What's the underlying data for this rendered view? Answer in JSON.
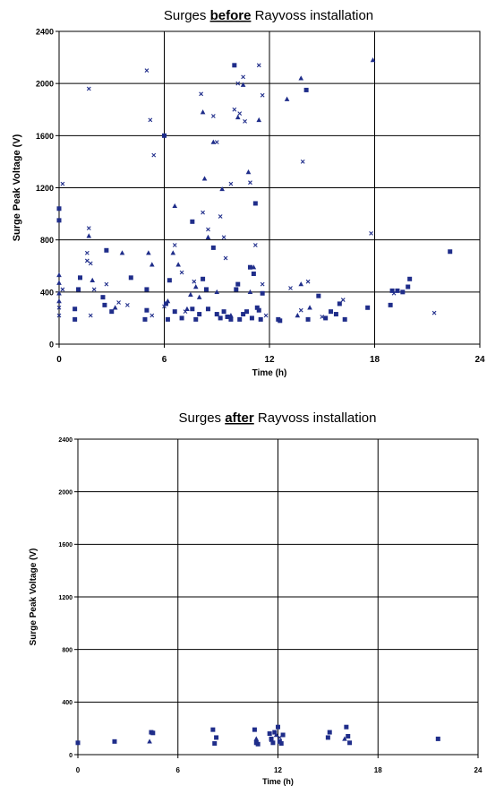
{
  "chart_data": [
    {
      "type": "scatter",
      "title": {
        "pre": "Surges ",
        "emph": "before",
        "post": " Rayvoss installation"
      },
      "xlabel": "Time (h)",
      "ylabel": "Surge Peak Voltage (V)",
      "xlim": [
        0,
        24
      ],
      "ylim": [
        0,
        2400
      ],
      "xticks": [
        "0",
        "6",
        "12",
        "18",
        "24"
      ],
      "yticks": [
        "0",
        "400",
        "800",
        "1200",
        "1600",
        "2000",
        "2400"
      ],
      "grid": true,
      "color": "#1f2d8a",
      "series": [
        {
          "marker": "square",
          "points": [
            [
              0.0,
              1040
            ],
            [
              0.0,
              950
            ],
            [
              0.9,
              270
            ],
            [
              0.9,
              190
            ],
            [
              1.1,
              420
            ],
            [
              1.2,
              510
            ],
            [
              2.5,
              360
            ],
            [
              2.6,
              300
            ],
            [
              2.7,
              720
            ],
            [
              3.0,
              250
            ],
            [
              4.1,
              510
            ],
            [
              4.9,
              190
            ],
            [
              5.0,
              260
            ],
            [
              5.0,
              420
            ],
            [
              6.0,
              1600
            ],
            [
              6.1,
              310
            ],
            [
              6.2,
              190
            ],
            [
              6.3,
              490
            ],
            [
              6.6,
              250
            ],
            [
              7.0,
              200
            ],
            [
              7.6,
              940
            ],
            [
              7.6,
              270
            ],
            [
              7.8,
              190
            ],
            [
              8.0,
              230
            ],
            [
              8.2,
              500
            ],
            [
              8.4,
              420
            ],
            [
              8.5,
              270
            ],
            [
              8.8,
              740
            ],
            [
              9.0,
              230
            ],
            [
              9.2,
              200
            ],
            [
              9.4,
              250
            ],
            [
              9.6,
              210
            ],
            [
              9.8,
              190
            ],
            [
              10.0,
              2140
            ],
            [
              10.1,
              420
            ],
            [
              10.2,
              460
            ],
            [
              10.3,
              190
            ],
            [
              10.5,
              230
            ],
            [
              10.7,
              250
            ],
            [
              10.9,
              590
            ],
            [
              11.0,
              200
            ],
            [
              11.1,
              540
            ],
            [
              11.2,
              1080
            ],
            [
              11.3,
              280
            ],
            [
              11.4,
              260
            ],
            [
              11.5,
              190
            ],
            [
              11.6,
              390
            ],
            [
              12.5,
              190
            ],
            [
              12.6,
              180
            ],
            [
              14.1,
              1950
            ],
            [
              14.2,
              190
            ],
            [
              14.8,
              370
            ],
            [
              15.2,
              200
            ],
            [
              15.5,
              250
            ],
            [
              15.8,
              230
            ],
            [
              16.0,
              310
            ],
            [
              16.3,
              190
            ],
            [
              17.6,
              280
            ],
            [
              18.9,
              300
            ],
            [
              19.0,
              410
            ],
            [
              19.3,
              410
            ],
            [
              19.6,
              400
            ],
            [
              19.9,
              440
            ],
            [
              20.0,
              500
            ],
            [
              22.3,
              710
            ]
          ]
        },
        {
          "marker": "triangle",
          "points": [
            [
              0.0,
              530
            ],
            [
              0.0,
              470
            ],
            [
              0.0,
              390
            ],
            [
              0.0,
              330
            ],
            [
              1.7,
              830
            ],
            [
              1.9,
              490
            ],
            [
              3.2,
              280
            ],
            [
              3.6,
              700
            ],
            [
              5.1,
              700
            ],
            [
              5.3,
              610
            ],
            [
              6.2,
              330
            ],
            [
              6.5,
              700
            ],
            [
              6.6,
              1060
            ],
            [
              6.8,
              610
            ],
            [
              7.3,
              270
            ],
            [
              7.5,
              380
            ],
            [
              7.8,
              440
            ],
            [
              8.0,
              360
            ],
            [
              8.2,
              1780
            ],
            [
              8.3,
              1270
            ],
            [
              8.5,
              820
            ],
            [
              8.8,
              1550
            ],
            [
              9.0,
              400
            ],
            [
              9.3,
              1190
            ],
            [
              9.8,
              220
            ],
            [
              10.2,
              1740
            ],
            [
              10.5,
              1990
            ],
            [
              10.8,
              1320
            ],
            [
              10.9,
              400
            ],
            [
              11.1,
              590
            ],
            [
              11.4,
              1720
            ],
            [
              13.0,
              1880
            ],
            [
              13.8,
              2040
            ],
            [
              17.9,
              2180
            ],
            [
              14.3,
              280
            ],
            [
              13.8,
              460
            ],
            [
              13.6,
              220
            ]
          ]
        },
        {
          "marker": "cross",
          "points": [
            [
              0.2,
              1230
            ],
            [
              0.2,
              420
            ],
            [
              0.0,
              280
            ],
            [
              0.0,
              220
            ],
            [
              1.6,
              700
            ],
            [
              1.6,
              640
            ],
            [
              1.7,
              890
            ],
            [
              1.7,
              1960
            ],
            [
              1.8,
              620
            ],
            [
              1.8,
              220
            ],
            [
              2.0,
              420
            ],
            [
              2.7,
              460
            ],
            [
              3.4,
              320
            ],
            [
              3.9,
              300
            ],
            [
              5.0,
              2100
            ],
            [
              5.2,
              1720
            ],
            [
              5.4,
              1450
            ],
            [
              5.3,
              220
            ],
            [
              6.0,
              290
            ],
            [
              6.6,
              760
            ],
            [
              7.0,
              550
            ],
            [
              7.2,
              250
            ],
            [
              7.7,
              480
            ],
            [
              8.1,
              1920
            ],
            [
              8.2,
              1010
            ],
            [
              8.5,
              880
            ],
            [
              8.8,
              1750
            ],
            [
              9.0,
              1550
            ],
            [
              9.2,
              980
            ],
            [
              9.4,
              820
            ],
            [
              9.5,
              660
            ],
            [
              9.8,
              1230
            ],
            [
              10.0,
              1800
            ],
            [
              10.2,
              2000
            ],
            [
              10.3,
              1770
            ],
            [
              10.5,
              2050
            ],
            [
              10.6,
              1710
            ],
            [
              10.9,
              1240
            ],
            [
              11.2,
              760
            ],
            [
              11.4,
              2140
            ],
            [
              11.6,
              1910
            ],
            [
              11.6,
              460
            ],
            [
              11.8,
              220
            ],
            [
              13.2,
              430
            ],
            [
              13.9,
              1400
            ],
            [
              14.2,
              480
            ],
            [
              16.2,
              340
            ],
            [
              17.8,
              850
            ],
            [
              19.1,
              390
            ],
            [
              21.4,
              240
            ],
            [
              13.8,
              260
            ],
            [
              15.0,
              210
            ]
          ]
        }
      ]
    },
    {
      "type": "scatter",
      "title": {
        "pre": "Surges ",
        "emph": "after",
        "post": " Rayvoss installation"
      },
      "xlabel": "Time (h)",
      "ylabel": "Surge Peak Voltage (V)",
      "xlim": [
        0,
        24
      ],
      "ylim": [
        0,
        2400
      ],
      "xticks": [
        "0",
        "6",
        "12",
        "18",
        "24"
      ],
      "yticks": [
        "0",
        "400",
        "800",
        "1200",
        "1600",
        "2000",
        "2400"
      ],
      "grid": true,
      "color": "#1f2d8a",
      "series": [
        {
          "marker": "square",
          "points": [
            [
              0.0,
              90
            ],
            [
              2.2,
              100
            ],
            [
              4.4,
              170
            ],
            [
              4.5,
              165
            ],
            [
              8.1,
              190
            ],
            [
              8.2,
              85
            ],
            [
              8.3,
              130
            ],
            [
              10.6,
              190
            ],
            [
              10.7,
              90
            ],
            [
              10.8,
              80
            ],
            [
              11.5,
              160
            ],
            [
              11.6,
              120
            ],
            [
              11.7,
              90
            ],
            [
              11.8,
              170
            ],
            [
              12.0,
              210
            ],
            [
              12.1,
              100
            ],
            [
              12.2,
              85
            ],
            [
              12.3,
              150
            ],
            [
              15.0,
              130
            ],
            [
              15.1,
              170
            ],
            [
              16.1,
              210
            ],
            [
              16.2,
              140
            ],
            [
              16.3,
              90
            ],
            [
              21.6,
              120
            ]
          ]
        },
        {
          "marker": "triangle",
          "points": [
            [
              4.3,
              100
            ],
            [
              10.7,
              120
            ],
            [
              11.9,
              150
            ],
            [
              16.0,
              120
            ]
          ]
        },
        {
          "marker": "cross",
          "points": [
            [
              11.6,
              110
            ],
            [
              12.1,
              130
            ]
          ]
        }
      ]
    }
  ]
}
